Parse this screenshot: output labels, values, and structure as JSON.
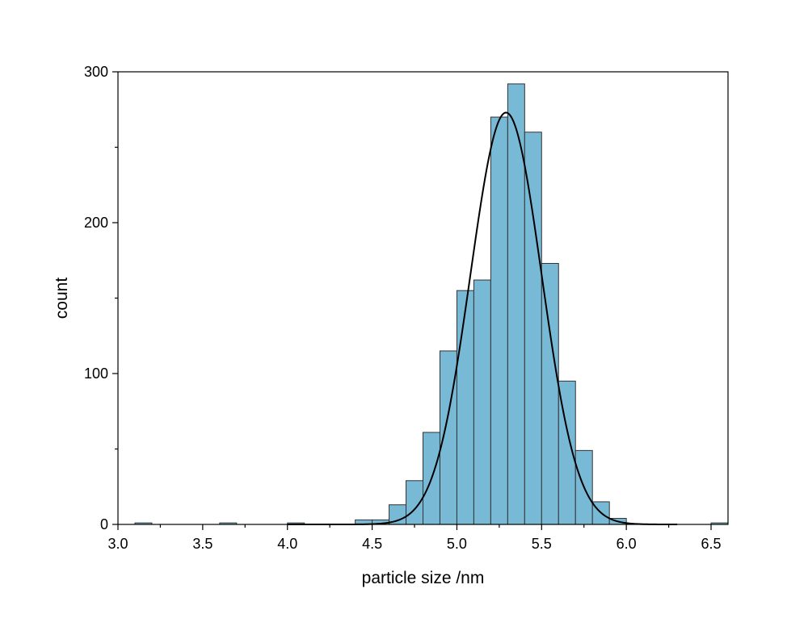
{
  "chart_data": {
    "type": "bar",
    "subtype": "histogram",
    "xlabel": "particle size /nm",
    "ylabel": "count",
    "xlim": [
      3.0,
      6.6
    ],
    "ylim": [
      0,
      300
    ],
    "x_ticks": [
      "3.0",
      "3.5",
      "4.0",
      "4.5",
      "5.0",
      "5.5",
      "6.0",
      "6.5"
    ],
    "x_tick_values": [
      3.0,
      3.5,
      4.0,
      4.5,
      5.0,
      5.5,
      6.0,
      6.5
    ],
    "y_ticks": [
      "0",
      "100",
      "200",
      "300"
    ],
    "y_tick_values": [
      0,
      100,
      200,
      300
    ],
    "bin_width": 0.1,
    "bins": [
      {
        "x0": 3.1,
        "x1": 3.2,
        "count": 1
      },
      {
        "x0": 3.6,
        "x1": 3.7,
        "count": 1
      },
      {
        "x0": 4.0,
        "x1": 4.1,
        "count": 1
      },
      {
        "x0": 4.4,
        "x1": 4.5,
        "count": 3
      },
      {
        "x0": 4.5,
        "x1": 4.6,
        "count": 3
      },
      {
        "x0": 4.6,
        "x1": 4.7,
        "count": 13
      },
      {
        "x0": 4.7,
        "x1": 4.8,
        "count": 29
      },
      {
        "x0": 4.8,
        "x1": 4.9,
        "count": 61
      },
      {
        "x0": 4.9,
        "x1": 5.0,
        "count": 115
      },
      {
        "x0": 5.0,
        "x1": 5.1,
        "count": 155
      },
      {
        "x0": 5.1,
        "x1": 5.2,
        "count": 162
      },
      {
        "x0": 5.2,
        "x1": 5.3,
        "count": 270
      },
      {
        "x0": 5.3,
        "x1": 5.4,
        "count": 292
      },
      {
        "x0": 5.4,
        "x1": 5.5,
        "count": 260
      },
      {
        "x0": 5.5,
        "x1": 5.6,
        "count": 173
      },
      {
        "x0": 5.6,
        "x1": 5.7,
        "count": 95
      },
      {
        "x0": 5.7,
        "x1": 5.8,
        "count": 49
      },
      {
        "x0": 5.8,
        "x1": 5.9,
        "count": 15
      },
      {
        "x0": 5.9,
        "x1": 6.0,
        "count": 4
      },
      {
        "x0": 6.5,
        "x1": 6.6,
        "count": 1
      }
    ],
    "fit": {
      "type": "gaussian",
      "mean": 5.29,
      "sigma": 0.21,
      "peak": 273
    },
    "colors": {
      "bar_fill": "#78b9d6",
      "bar_stroke": "#333333",
      "curve": "#000000"
    },
    "grid": false,
    "legend": "none"
  }
}
